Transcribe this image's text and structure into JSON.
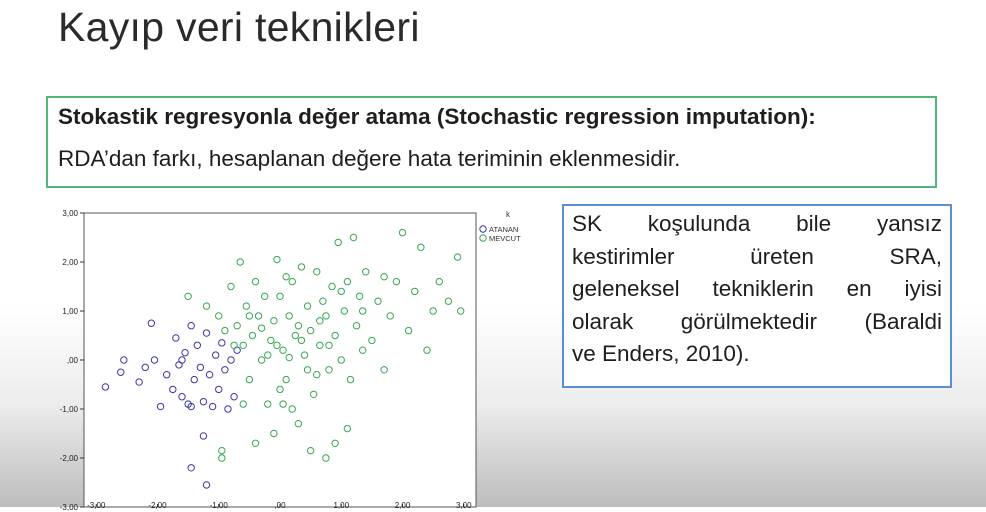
{
  "slide": {
    "title": "Kayıp veri teknikleri",
    "definition_heading": "Stokastik regresyonla değer atama (Stochastic regression imputation):",
    "definition_body": "RDA’dan farkı, hesaplanan değere hata teriminin eklenmesidir."
  },
  "callout": {
    "line1": [
      "SK",
      "koşulunda",
      "bile",
      "yansız"
    ],
    "line2": [
      "kestirimler",
      "üreten",
      "SRA,"
    ],
    "line3": [
      "geleneksel",
      "tekniklerin",
      "en",
      "iyisi"
    ],
    "line4": [
      "olarak",
      "görülmektedir",
      "(Baraldi"
    ],
    "line5": "ve Enders, 2010)."
  },
  "colors": {
    "accent_green": "#55b47a",
    "accent_blue": "#5b8fd1",
    "highlight_red": "#e02020",
    "series_atanan": "#3a3aa0",
    "series_mevcut": "#3aa655"
  },
  "chart_data": {
    "type": "scatter",
    "legend_title": "k",
    "legend_placement": "top-right",
    "xlim": [
      -3.2,
      3.2
    ],
    "ylim": [
      -3.0,
      3.0
    ],
    "x_ticks": [
      "-3,00",
      "-2,00",
      "-1,00",
      ",00",
      "1,00",
      "2,00",
      "3,00"
    ],
    "y_ticks": [
      "3,00",
      "2,00",
      "1,00",
      ",00",
      "-1,00",
      "-2,00",
      "-3,00"
    ],
    "grid": false,
    "series": [
      {
        "name": "ATANAN",
        "color": "#3a3aa0",
        "points": [
          [
            -2.85,
            -0.55
          ],
          [
            -2.6,
            -0.25
          ],
          [
            -2.55,
            0.0
          ],
          [
            -2.3,
            -0.45
          ],
          [
            -2.2,
            -0.15
          ],
          [
            -2.05,
            0.0
          ],
          [
            -2.1,
            0.75
          ],
          [
            -1.95,
            -0.95
          ],
          [
            -1.85,
            -0.3
          ],
          [
            -1.75,
            -0.6
          ],
          [
            -1.7,
            0.45
          ],
          [
            -1.65,
            -0.1
          ],
          [
            -1.6,
            -0.75
          ],
          [
            -1.55,
            0.15
          ],
          [
            -1.5,
            -0.9
          ],
          [
            -1.45,
            0.7
          ],
          [
            -1.4,
            -0.4
          ],
          [
            -1.35,
            0.3
          ],
          [
            -1.3,
            -0.15
          ],
          [
            -1.25,
            -0.85
          ],
          [
            -1.2,
            0.55
          ],
          [
            -1.15,
            -0.3
          ],
          [
            -1.1,
            -0.95
          ],
          [
            -1.05,
            0.1
          ],
          [
            -1.0,
            -0.6
          ],
          [
            -0.95,
            0.35
          ],
          [
            -0.9,
            -0.2
          ],
          [
            -0.85,
            -1.0
          ],
          [
            -0.8,
            0.0
          ],
          [
            -1.45,
            -2.2
          ],
          [
            -1.2,
            -2.55
          ],
          [
            -0.75,
            -0.75
          ],
          [
            -0.7,
            0.2
          ],
          [
            -1.25,
            -1.55
          ],
          [
            -1.45,
            -0.95
          ],
          [
            -1.6,
            0.0
          ]
        ]
      },
      {
        "name": "MEVCUT",
        "color": "#3aa655",
        "points": [
          [
            -1.5,
            1.3
          ],
          [
            -1.2,
            1.1
          ],
          [
            -1.0,
            0.9
          ],
          [
            -0.9,
            0.6
          ],
          [
            -0.8,
            1.5
          ],
          [
            -0.7,
            0.7
          ],
          [
            -0.6,
            0.3
          ],
          [
            -0.65,
            2.0
          ],
          [
            -0.55,
            1.1
          ],
          [
            -0.5,
            -0.4
          ],
          [
            -0.45,
            0.5
          ],
          [
            -0.4,
            1.6
          ],
          [
            -0.35,
            0.9
          ],
          [
            -0.3,
            0.0
          ],
          [
            -0.25,
            1.3
          ],
          [
            -0.2,
            -0.9
          ],
          [
            -0.15,
            0.4
          ],
          [
            -0.1,
            0.8
          ],
          [
            -0.05,
            2.05
          ],
          [
            0.0,
            1.3
          ],
          [
            0.05,
            0.2
          ],
          [
            0.1,
            -0.4
          ],
          [
            0.15,
            0.9
          ],
          [
            0.2,
            1.6
          ],
          [
            0.25,
            0.5
          ],
          [
            0.3,
            -1.3
          ],
          [
            0.35,
            1.9
          ],
          [
            0.4,
            0.1
          ],
          [
            0.45,
            1.1
          ],
          [
            0.5,
            0.6
          ],
          [
            0.55,
            -0.7
          ],
          [
            0.6,
            1.8
          ],
          [
            0.65,
            0.3
          ],
          [
            0.7,
            1.2
          ],
          [
            0.75,
            0.9
          ],
          [
            0.8,
            -0.2
          ],
          [
            0.85,
            1.5
          ],
          [
            0.9,
            0.5
          ],
          [
            0.95,
            2.4
          ],
          [
            1.0,
            0.0
          ],
          [
            1.05,
            1.0
          ],
          [
            1.1,
            1.6
          ],
          [
            1.15,
            -0.4
          ],
          [
            1.2,
            2.5
          ],
          [
            1.25,
            0.7
          ],
          [
            1.3,
            1.3
          ],
          [
            1.35,
            0.2
          ],
          [
            1.4,
            1.8
          ],
          [
            1.5,
            0.4
          ],
          [
            1.6,
            1.2
          ],
          [
            1.7,
            -0.2
          ],
          [
            1.8,
            0.9
          ],
          [
            1.9,
            1.6
          ],
          [
            2.0,
            2.6
          ],
          [
            2.1,
            0.6
          ],
          [
            2.2,
            1.4
          ],
          [
            2.3,
            2.3
          ],
          [
            2.4,
            0.2
          ],
          [
            2.5,
            1.0
          ],
          [
            2.6,
            1.6
          ],
          [
            2.75,
            1.2
          ],
          [
            2.9,
            2.1
          ],
          [
            2.95,
            1.0
          ],
          [
            -0.4,
            -1.7
          ],
          [
            -0.1,
            -1.5
          ],
          [
            0.2,
            -1.0
          ],
          [
            0.5,
            -1.85
          ],
          [
            0.75,
            -2.0
          ],
          [
            0.9,
            -1.7
          ],
          [
            1.1,
            -1.4
          ],
          [
            -0.95,
            -1.85
          ],
          [
            -0.95,
            -2.0
          ],
          [
            -0.6,
            -0.9
          ],
          [
            0.0,
            -0.6
          ],
          [
            0.3,
            0.7
          ],
          [
            0.6,
            -0.3
          ],
          [
            -0.3,
            0.65
          ],
          [
            -0.05,
            0.3
          ],
          [
            0.35,
            0.4
          ],
          [
            0.1,
            1.7
          ],
          [
            -0.2,
            0.1
          ],
          [
            0.45,
            -0.2
          ],
          [
            0.65,
            0.8
          ],
          [
            1.0,
            1.4
          ],
          [
            1.35,
            1.0
          ],
          [
            1.7,
            1.7
          ],
          [
            0.8,
            0.3
          ],
          [
            -0.75,
            0.3
          ],
          [
            -0.5,
            0.9
          ],
          [
            0.05,
            -0.9
          ],
          [
            0.15,
            0.05
          ]
        ]
      }
    ]
  }
}
